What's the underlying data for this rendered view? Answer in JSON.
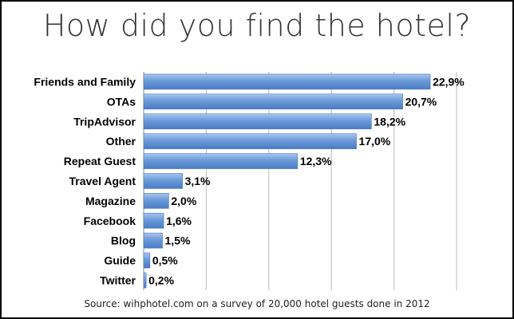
{
  "chart_data": {
    "type": "bar",
    "orientation": "horizontal",
    "title": "How did you find the hotel?",
    "categories": [
      "Friends and Family",
      "OTAs",
      "TripAdvisor",
      "Other",
      "Repeat Guest",
      "Travel Agent",
      "Magazine",
      "Facebook",
      "Blog",
      "Guide",
      "Twitter"
    ],
    "values": [
      22.9,
      20.7,
      18.2,
      17.0,
      12.3,
      3.1,
      2.0,
      1.6,
      1.5,
      0.5,
      0.2
    ],
    "data_labels": [
      "22,9%",
      "20,7%",
      "18,2%",
      "17,0%",
      "12,3%",
      "3,1%",
      "2,0%",
      "1,6%",
      "1,5%",
      "0,5%",
      "0,2%"
    ],
    "xlim": [
      0,
      25
    ],
    "grid": true,
    "bar_color": "#6b9ad8",
    "source": "Source: wihphotel.com  on a survey of 20,000 hotel guests done in 2012"
  }
}
